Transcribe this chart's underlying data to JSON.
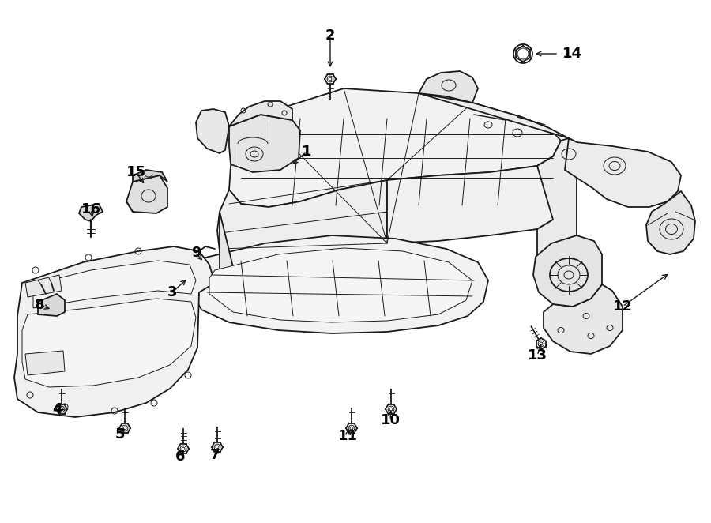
{
  "bg": "#ffffff",
  "lc": "#1a1a1a",
  "lw": 1.3,
  "lw_thin": 0.7,
  "fontsize_label": 14,
  "label_positions": {
    "1": [
      388,
      195,
      370,
      212
    ],
    "2": [
      418,
      48,
      418,
      85
    ],
    "3": [
      218,
      373,
      235,
      355
    ],
    "4": [
      72,
      520,
      80,
      508
    ],
    "5": [
      152,
      553,
      160,
      541
    ],
    "6": [
      228,
      580,
      235,
      567
    ],
    "7": [
      272,
      578,
      278,
      566
    ],
    "8": [
      52,
      388,
      68,
      393
    ],
    "9": [
      248,
      322,
      258,
      333
    ],
    "10": [
      493,
      535,
      495,
      520
    ],
    "11": [
      440,
      556,
      442,
      543
    ],
    "12": [
      788,
      392,
      845,
      348
    ],
    "13": [
      680,
      452,
      682,
      436
    ],
    "14": [
      748,
      68,
      682,
      68
    ],
    "15": [
      172,
      222,
      185,
      238
    ],
    "16": [
      115,
      268,
      118,
      282
    ]
  }
}
